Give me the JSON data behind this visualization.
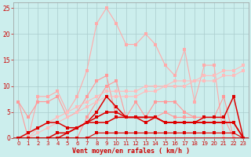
{
  "xlabel": "Vent moyen/en rafales ( km/h )",
  "x": [
    0,
    1,
    2,
    3,
    4,
    5,
    6,
    7,
    8,
    9,
    10,
    11,
    12,
    13,
    14,
    15,
    16,
    17,
    18,
    19,
    20,
    21,
    22,
    23
  ],
  "line_rafales": [
    0,
    0,
    8,
    8,
    9,
    5,
    8,
    13,
    22,
    25,
    22,
    18,
    18,
    20,
    18,
    14,
    12,
    17,
    7,
    14,
    14,
    0,
    0,
    0
  ],
  "line_pink1": [
    7,
    4,
    7,
    7,
    8,
    4,
    5,
    8,
    11,
    12,
    4,
    4,
    7,
    4,
    4,
    5,
    4,
    4,
    4,
    4,
    4,
    8,
    0,
    0
  ],
  "line_pink2": [
    7,
    0,
    0,
    0,
    0,
    0,
    0,
    4,
    7,
    10,
    11,
    4,
    4,
    4,
    7,
    7,
    7,
    5,
    4,
    4,
    4,
    4,
    0,
    0
  ],
  "line_pinkgrad1": [
    0,
    0,
    2,
    3,
    4,
    5,
    6,
    7,
    8,
    9,
    9,
    9,
    9,
    10,
    10,
    10,
    11,
    11,
    11,
    12,
    12,
    13,
    13,
    14
  ],
  "line_pinkgrad2": [
    0,
    0,
    1,
    2,
    3,
    4,
    5,
    6,
    7,
    8,
    8,
    8,
    8,
    9,
    9,
    10,
    10,
    10,
    11,
    11,
    11,
    12,
    12,
    13
  ],
  "line_red1": [
    0,
    0,
    0,
    0,
    1,
    1,
    2,
    3,
    5,
    8,
    6,
    4,
    4,
    4,
    4,
    3,
    3,
    3,
    3,
    4,
    4,
    4,
    8,
    0
  ],
  "line_red2": [
    0,
    1,
    2,
    3,
    3,
    2,
    2,
    3,
    3,
    3,
    4,
    4,
    4,
    4,
    4,
    3,
    3,
    3,
    3,
    3,
    3,
    3,
    3,
    0
  ],
  "line_red3": [
    0,
    0,
    0,
    0,
    0,
    1,
    2,
    3,
    4,
    5,
    5,
    4,
    4,
    3,
    4,
    3,
    3,
    3,
    3,
    3,
    3,
    3,
    3,
    0
  ],
  "line_red_flat": [
    0,
    0,
    0,
    0,
    0,
    0,
    0,
    0,
    1,
    1,
    1,
    1,
    1,
    1,
    1,
    1,
    1,
    1,
    1,
    1,
    1,
    1,
    1,
    0
  ],
  "bg_color": "#cceeed",
  "grid_color": "#aacccc",
  "ylim": [
    0,
    26
  ],
  "xlim": [
    -0.5,
    23.5
  ]
}
